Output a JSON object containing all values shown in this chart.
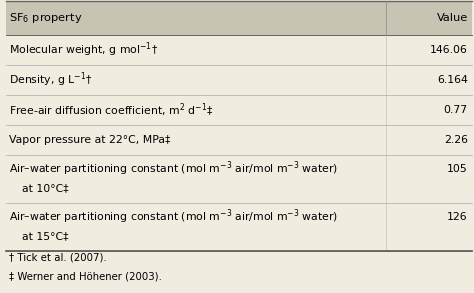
{
  "header_bg": "#c8c4b4",
  "body_bg": "#f0ece0",
  "header_col1": "SF$_6$ property",
  "header_col2": "Value",
  "rows": [
    {
      "property": "Molecular weight, g mol$^{-1}$†",
      "value": "146.06",
      "multiline": false,
      "line2": ""
    },
    {
      "property": "Density, g L$^{-1}$†",
      "value": "6.164",
      "multiline": false,
      "line2": ""
    },
    {
      "property": "Free-air diffusion coefficient, m$^2$ d$^{-1}$‡",
      "value": "0.77",
      "multiline": false,
      "line2": ""
    },
    {
      "property": "Vapor pressure at 22°C, MPa‡",
      "value": "2.26",
      "multiline": false,
      "line2": ""
    },
    {
      "property": "Air–water partitioning constant (mol m$^{-3}$ air/mol m$^{-3}$ water)",
      "value": "105",
      "multiline": true,
      "line2": "at 10°C‡"
    },
    {
      "property": "Air–water partitioning constant (mol m$^{-3}$ air/mol m$^{-3}$ water)",
      "value": "126",
      "multiline": true,
      "line2": "at 15°C‡"
    }
  ],
  "footnotes": [
    "† Tick et al. (2007).",
    "‡ Werner and Höhener (2003)."
  ],
  "font_size": 7.8,
  "header_font_size": 8.2,
  "fig_width": 4.74,
  "fig_height": 2.93,
  "dpi": 100
}
